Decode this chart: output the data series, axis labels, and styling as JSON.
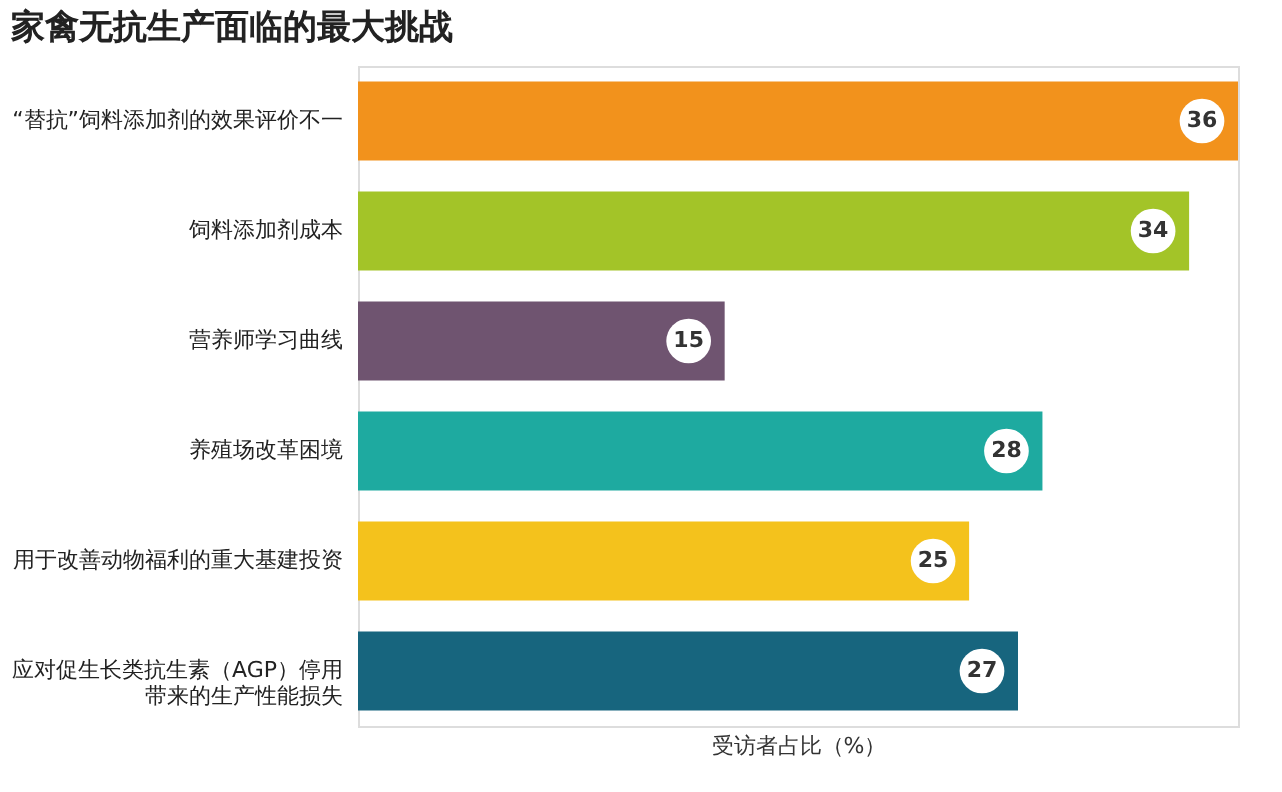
{
  "chart_data": {
    "type": "bar",
    "orientation": "horizontal",
    "title": "家禽无抗生产面临的最大挑战",
    "xlabel": "受访者占比（%）",
    "categories": [
      "“替抗”饲料添加剂的效果评价不一",
      "饲料添加剂成本",
      "营养师学习曲线",
      "养殖场改革困境",
      "用于改善动物福利的重大基建投资",
      "应对促生长类抗生素（AGP）停用带来的生产性能损失"
    ],
    "values": [
      36,
      34,
      15,
      28,
      25,
      27
    ],
    "colors": [
      "#f2921c",
      "#a3c428",
      "#6f5470",
      "#1eaaa0",
      "#f4c21c",
      "#17657e"
    ],
    "data_labels": true,
    "grid": false,
    "legend": false
  }
}
